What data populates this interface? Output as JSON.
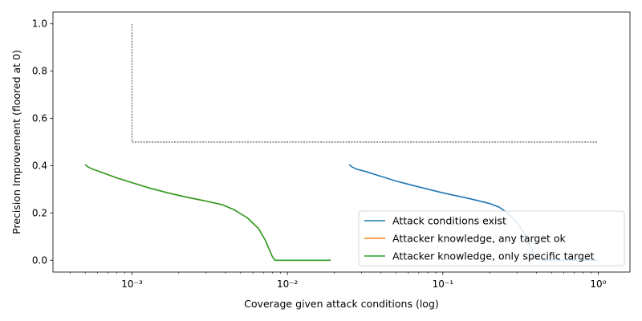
{
  "chart_data": {
    "type": "line",
    "title": "",
    "xlabel": "Coverage given attack conditions (log)",
    "ylabel": "Precision Improvement (floored at 0)",
    "x_scale": "log",
    "xlim": [
      0.00031,
      1.6
    ],
    "ylim": [
      -0.05,
      1.05
    ],
    "x_ticks": [
      {
        "value": 0.001,
        "label": "10⁻³"
      },
      {
        "value": 0.01,
        "label": "10⁻²"
      },
      {
        "value": 0.1,
        "label": "10⁻¹"
      },
      {
        "value": 1,
        "label": "10⁰"
      }
    ],
    "y_ticks": [
      {
        "value": 0.0,
        "label": "0.0"
      },
      {
        "value": 0.2,
        "label": "0.2"
      },
      {
        "value": 0.4,
        "label": "0.4"
      },
      {
        "value": 0.6,
        "label": "0.6"
      },
      {
        "value": 0.8,
        "label": "0.8"
      },
      {
        "value": 1.0,
        "label": "1.0"
      }
    ],
    "grid": false,
    "legend_position": "lower-right",
    "reference_lines": [
      {
        "x": [
          0.001,
          0.001
        ],
        "y": [
          1.0,
          0.5
        ],
        "color": "#000000",
        "style": "dotted"
      },
      {
        "x": [
          0.001,
          1.0
        ],
        "y": [
          0.5,
          0.5
        ],
        "color": "#000000",
        "style": "dotted"
      }
    ],
    "series": [
      {
        "name": "Attack conditions exist",
        "color": "#1f77b4",
        "x": [
          0.025,
          0.026,
          0.028,
          0.032,
          0.04,
          0.05,
          0.07,
          0.1,
          0.15,
          0.2,
          0.23,
          0.26,
          0.3,
          0.33,
          0.36,
          0.38,
          0.4,
          0.43,
          0.47,
          0.55,
          0.7,
          0.85,
          1.0
        ],
        "y": [
          0.405,
          0.395,
          0.385,
          0.375,
          0.355,
          0.335,
          0.31,
          0.285,
          0.26,
          0.24,
          0.225,
          0.2,
          0.16,
          0.12,
          0.07,
          0.035,
          0.012,
          0.0,
          0.0,
          0.0,
          0.0,
          0.0,
          0.0
        ]
      },
      {
        "name": "Attacker knowledge, any target ok",
        "color": "#ff7f0e",
        "x": [
          0.0005,
          0.00052,
          0.00056,
          0.0006,
          0.0007,
          0.0008,
          0.001,
          0.0013,
          0.0017,
          0.0022,
          0.003,
          0.0038,
          0.0045,
          0.0055,
          0.0065,
          0.0072,
          0.0077,
          0.008,
          0.0083,
          0.0085,
          0.009,
          0.011,
          0.014,
          0.019
        ],
        "y": [
          0.405,
          0.395,
          0.385,
          0.378,
          0.362,
          0.348,
          0.328,
          0.305,
          0.285,
          0.268,
          0.25,
          0.235,
          0.215,
          0.18,
          0.135,
          0.085,
          0.04,
          0.015,
          0.0,
          0.0,
          0.0,
          0.0,
          0.0,
          0.0
        ]
      },
      {
        "name": "Attacker knowledge, only specific target",
        "color": "#2ca02c",
        "x": [
          0.0005,
          0.00052,
          0.00056,
          0.0006,
          0.0007,
          0.0008,
          0.001,
          0.0013,
          0.0017,
          0.0022,
          0.003,
          0.0038,
          0.0045,
          0.0055,
          0.0065,
          0.0072,
          0.0077,
          0.008,
          0.0083,
          0.0085,
          0.009,
          0.011,
          0.014,
          0.019
        ],
        "y": [
          0.405,
          0.395,
          0.385,
          0.378,
          0.362,
          0.348,
          0.328,
          0.305,
          0.285,
          0.268,
          0.25,
          0.235,
          0.215,
          0.18,
          0.135,
          0.085,
          0.04,
          0.015,
          0.0,
          0.0,
          0.0,
          0.0,
          0.0,
          0.0
        ]
      }
    ]
  }
}
